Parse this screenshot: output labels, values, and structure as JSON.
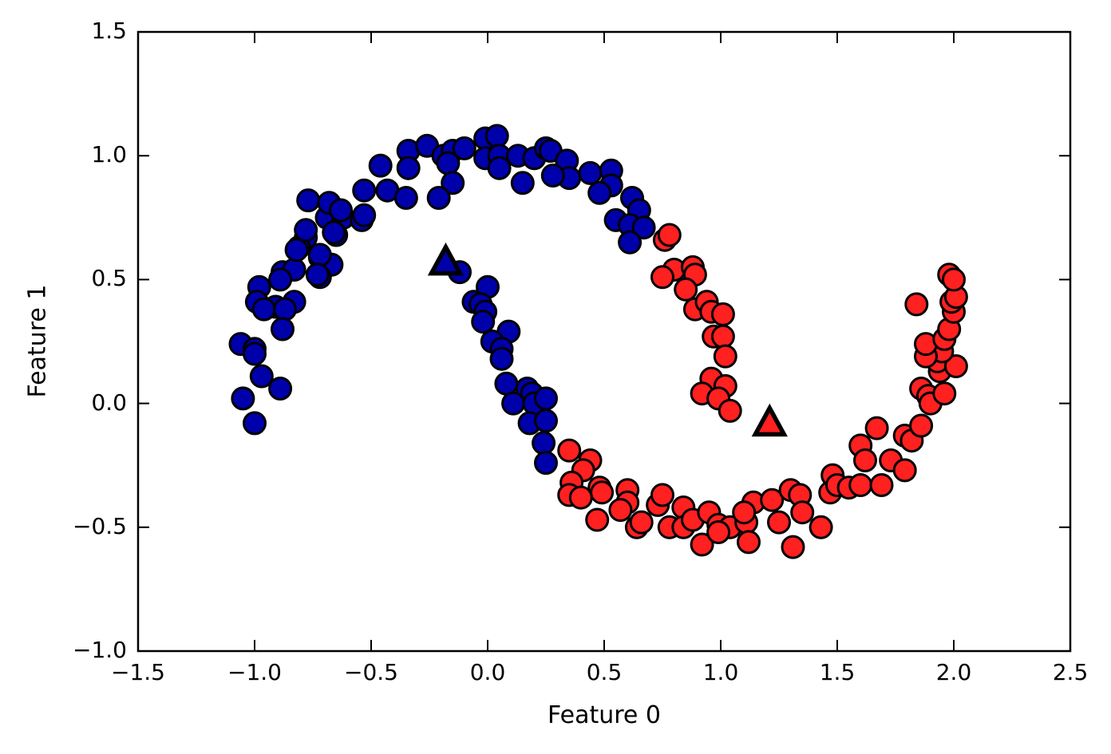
{
  "chart_data": {
    "type": "scatter",
    "title": "",
    "xlabel": "Feature 0",
    "ylabel": "Feature 1",
    "xlim": [
      -1.5,
      2.5
    ],
    "ylim": [
      -1.0,
      1.5
    ],
    "grid": false,
    "legend_position": "none",
    "x_ticks": [
      -1.5,
      -1.0,
      -0.5,
      0.0,
      0.5,
      1.0,
      1.5,
      2.0,
      2.5
    ],
    "x_tick_labels": [
      "−1.5",
      "−1.0",
      "−0.5",
      "0.0",
      "0.5",
      "1.0",
      "1.5",
      "2.0",
      "2.5"
    ],
    "y_ticks": [
      -1.0,
      -0.5,
      0.0,
      0.5,
      1.0,
      1.5
    ],
    "y_tick_labels": [
      "−1.0",
      "−0.5",
      "0.0",
      "0.5",
      "1.0",
      "1.5"
    ],
    "colors": {
      "cluster0": "#0000aa",
      "cluster1": "#ff2020",
      "marker_edge": "#000000",
      "axes": "#000000",
      "background": "#ffffff"
    },
    "series": [
      {
        "name": "cluster 0 (blue circles)",
        "marker": "circle",
        "fill": "#0000aa",
        "edge": "#000000",
        "points": [
          [
            -0.69,
            0.75
          ],
          [
            -0.62,
            0.75
          ],
          [
            -0.54,
            0.74
          ],
          [
            -0.78,
            0.67
          ],
          [
            -0.81,
            0.63
          ],
          [
            -0.65,
            0.68
          ],
          [
            -0.72,
            0.59
          ],
          [
            -0.67,
            0.56
          ],
          [
            -0.88,
            0.53
          ],
          [
            -0.83,
            0.54
          ],
          [
            -0.72,
            0.51
          ],
          [
            -0.98,
            0.47
          ],
          [
            -0.89,
            0.5
          ],
          [
            -0.99,
            0.41
          ],
          [
            -0.91,
            0.39
          ],
          [
            -0.83,
            0.41
          ],
          [
            -0.96,
            0.38
          ],
          [
            -0.87,
            0.38
          ],
          [
            -0.88,
            0.3
          ],
          [
            -1.06,
            0.24
          ],
          [
            -1.0,
            0.22
          ],
          [
            -1.0,
            0.2
          ],
          [
            -0.97,
            0.11
          ],
          [
            -0.89,
            0.06
          ],
          [
            -1.05,
            0.02
          ],
          [
            -1.0,
            -0.08
          ],
          [
            -0.46,
            0.96
          ],
          [
            -0.34,
            1.02
          ],
          [
            -0.34,
            0.95
          ],
          [
            -0.26,
            1.04
          ],
          [
            -0.19,
            1.0
          ],
          [
            -0.15,
            1.02
          ],
          [
            -0.17,
            0.97
          ],
          [
            -0.15,
            0.89
          ],
          [
            -0.1,
            1.03
          ],
          [
            -0.43,
            0.86
          ],
          [
            -0.53,
            0.86
          ],
          [
            -0.35,
            0.83
          ],
          [
            -0.21,
            0.83
          ],
          [
            -0.53,
            0.76
          ],
          [
            -0.77,
            0.82
          ],
          [
            -0.68,
            0.81
          ],
          [
            -0.63,
            0.78
          ],
          [
            -0.66,
            0.69
          ],
          [
            -0.78,
            0.7
          ],
          [
            -0.82,
            0.62
          ],
          [
            -0.72,
            0.6
          ],
          [
            -0.73,
            0.52
          ],
          [
            -0.01,
            1.07
          ],
          [
            0.04,
            1.08
          ],
          [
            -0.01,
            0.99
          ],
          [
            0.05,
            1.0
          ],
          [
            0.05,
            0.95
          ],
          [
            0.13,
            1.0
          ],
          [
            0.2,
            0.99
          ],
          [
            0.15,
            0.89
          ],
          [
            0.25,
            1.03
          ],
          [
            0.27,
            1.02
          ],
          [
            0.34,
            0.98
          ],
          [
            0.35,
            0.91
          ],
          [
            0.28,
            0.92
          ],
          [
            0.44,
            0.93
          ],
          [
            0.53,
            0.94
          ],
          [
            0.53,
            0.88
          ],
          [
            0.48,
            0.85
          ],
          [
            0.62,
            0.83
          ],
          [
            0.65,
            0.78
          ],
          [
            0.55,
            0.74
          ],
          [
            0.61,
            0.72
          ],
          [
            0.67,
            0.71
          ],
          [
            0.61,
            0.65
          ],
          [
            -0.12,
            0.53
          ],
          [
            0.0,
            0.47
          ],
          [
            -0.06,
            0.41
          ],
          [
            -0.03,
            0.4
          ],
          [
            -0.01,
            0.37
          ],
          [
            -0.02,
            0.33
          ],
          [
            0.09,
            0.29
          ],
          [
            0.02,
            0.25
          ],
          [
            0.06,
            0.22
          ],
          [
            0.06,
            0.18
          ],
          [
            0.08,
            0.08
          ],
          [
            0.17,
            0.06
          ],
          [
            0.19,
            0.04
          ],
          [
            0.11,
            0.0
          ],
          [
            0.2,
            0.0
          ],
          [
            0.25,
            0.02
          ],
          [
            0.18,
            -0.08
          ],
          [
            0.25,
            -0.07
          ],
          [
            0.24,
            -0.16
          ],
          [
            0.25,
            -0.24
          ]
        ]
      },
      {
        "name": "cluster 1 (red circles)",
        "marker": "circle",
        "fill": "#ff2020",
        "edge": "#000000",
        "points": [
          [
            0.76,
            0.66
          ],
          [
            0.78,
            0.68
          ],
          [
            0.8,
            0.54
          ],
          [
            0.88,
            0.55
          ],
          [
            0.89,
            0.52
          ],
          [
            0.75,
            0.51
          ],
          [
            0.85,
            0.46
          ],
          [
            0.89,
            0.38
          ],
          [
            0.94,
            0.41
          ],
          [
            0.96,
            0.37
          ],
          [
            1.01,
            0.36
          ],
          [
            0.97,
            0.27
          ],
          [
            1.01,
            0.27
          ],
          [
            1.02,
            0.19
          ],
          [
            0.96,
            0.1
          ],
          [
            1.02,
            0.07
          ],
          [
            0.92,
            0.04
          ],
          [
            0.99,
            0.02
          ],
          [
            1.04,
            -0.03
          ],
          [
            0.35,
            -0.19
          ],
          [
            0.44,
            -0.23
          ],
          [
            0.41,
            -0.27
          ],
          [
            0.36,
            -0.32
          ],
          [
            0.48,
            -0.34
          ],
          [
            0.35,
            -0.37
          ],
          [
            0.4,
            -0.38
          ],
          [
            0.49,
            -0.36
          ],
          [
            0.6,
            -0.35
          ],
          [
            0.6,
            -0.4
          ],
          [
            0.47,
            -0.47
          ],
          [
            0.57,
            -0.43
          ],
          [
            0.64,
            -0.5
          ],
          [
            0.66,
            -0.48
          ],
          [
            0.73,
            -0.41
          ],
          [
            0.75,
            -0.37
          ],
          [
            0.78,
            -0.5
          ],
          [
            0.84,
            -0.42
          ],
          [
            0.84,
            -0.5
          ],
          [
            0.88,
            -0.47
          ],
          [
            0.95,
            -0.44
          ],
          [
            0.99,
            -0.49
          ],
          [
            0.92,
            -0.57
          ],
          [
            1.04,
            -0.5
          ],
          [
            1.11,
            -0.48
          ],
          [
            1.14,
            -0.4
          ],
          [
            1.12,
            -0.56
          ],
          [
            0.99,
            -0.52
          ],
          [
            1.22,
            -0.39
          ],
          [
            1.3,
            -0.35
          ],
          [
            1.34,
            -0.37
          ],
          [
            1.1,
            -0.44
          ],
          [
            1.35,
            -0.44
          ],
          [
            1.25,
            -0.48
          ],
          [
            1.43,
            -0.5
          ],
          [
            1.31,
            -0.58
          ],
          [
            1.47,
            -0.36
          ],
          [
            1.48,
            -0.29
          ],
          [
            1.5,
            -0.33
          ],
          [
            1.55,
            -0.34
          ],
          [
            1.6,
            -0.33
          ],
          [
            1.6,
            -0.17
          ],
          [
            1.62,
            -0.23
          ],
          [
            1.67,
            -0.1
          ],
          [
            1.69,
            -0.33
          ],
          [
            1.73,
            -0.23
          ],
          [
            1.79,
            -0.13
          ],
          [
            1.79,
            -0.27
          ],
          [
            1.82,
            -0.15
          ],
          [
            1.86,
            -0.09
          ],
          [
            1.86,
            0.06
          ],
          [
            1.89,
            0.03
          ],
          [
            1.9,
            0.0
          ],
          [
            1.96,
            0.04
          ],
          [
            1.94,
            0.13
          ],
          [
            1.93,
            0.17
          ],
          [
            2.01,
            0.15
          ],
          [
            1.95,
            0.21
          ],
          [
            1.88,
            0.19
          ],
          [
            1.88,
            0.24
          ],
          [
            1.96,
            0.26
          ],
          [
            1.98,
            0.3
          ],
          [
            2.0,
            0.37
          ],
          [
            1.99,
            0.41
          ],
          [
            2.01,
            0.43
          ],
          [
            1.98,
            0.52
          ],
          [
            2.0,
            0.5
          ],
          [
            1.84,
            0.4
          ]
        ]
      }
    ],
    "cluster_centers": [
      {
        "name": "cluster 0 center",
        "marker": "triangle",
        "fill": "#0000aa",
        "edge": "#000000",
        "x": -0.18,
        "y": 0.57
      },
      {
        "name": "cluster 1 center",
        "marker": "triangle",
        "fill": "#ff2020",
        "edge": "#000000",
        "x": 1.21,
        "y": -0.08
      }
    ]
  }
}
